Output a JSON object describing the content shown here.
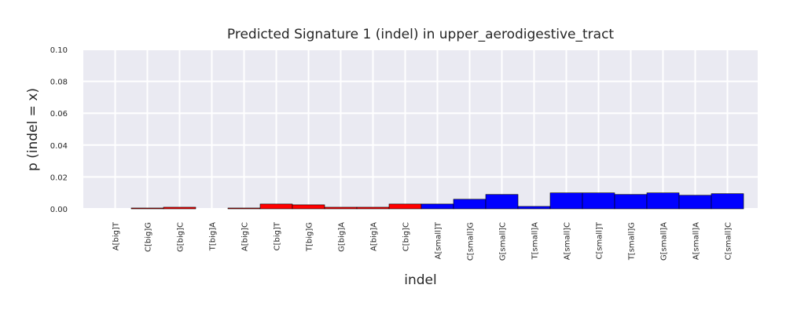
{
  "chart_data": {
    "type": "bar",
    "title": "Predicted Signature 1 (indel) in upper_aerodigestive_tract",
    "xlabel": "indel",
    "ylabel": "p (indel = x)",
    "ylim": [
      0,
      0.1
    ],
    "yticks": [
      "0.00",
      "0.02",
      "0.04",
      "0.06",
      "0.08",
      "0.10"
    ],
    "grid": true,
    "categories": [
      "A[big]T",
      "C[big]G",
      "G[big]C",
      "T[big]A",
      "A[big]C",
      "C[big]T",
      "T[big]G",
      "G[big]A",
      "A[big]A",
      "C[big]C",
      "A[small]T",
      "C[small]G",
      "G[small]C",
      "T[small]A",
      "A[small]C",
      "C[small]T",
      "T[small]G",
      "G[small]A",
      "A[small]A",
      "C[small]C"
    ],
    "values": [
      0.0,
      0.0005,
      0.001,
      0.0,
      0.0005,
      0.003,
      0.0025,
      0.001,
      0.001,
      0.003,
      0.003,
      0.006,
      0.009,
      0.0015,
      0.01,
      0.01,
      0.009,
      0.01,
      0.0085,
      0.0095
    ],
    "colors": [
      "#ff0000",
      "#ff0000",
      "#ff0000",
      "#ff0000",
      "#ff0000",
      "#ff0000",
      "#ff0000",
      "#ff0000",
      "#ff0000",
      "#ff0000",
      "#0000ff",
      "#0000ff",
      "#0000ff",
      "#0000ff",
      "#0000ff",
      "#0000ff",
      "#0000ff",
      "#0000ff",
      "#0000ff",
      "#0000ff"
    ]
  }
}
